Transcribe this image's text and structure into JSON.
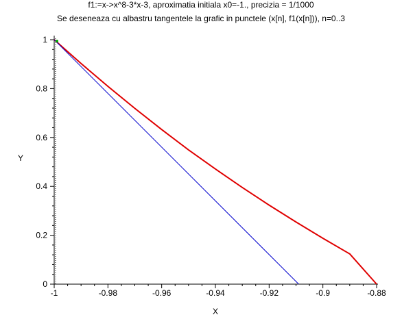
{
  "chart_data": {
    "type": "line",
    "title": "f1:=x->x^8-3*x-3, aproximatia initiala x0=-1.,  precizia = 1/1000",
    "subtitle": "Se deseneaza cu albastru tangentele la grafic in punctele (x[n], f1(x[n])), n=0..3",
    "xlabel": "X",
    "ylabel": "Y",
    "xlim": [
      -1.0,
      -0.88
    ],
    "ylim": [
      0,
      1.0
    ],
    "xticks": [
      -1,
      -0.98,
      -0.96,
      -0.94,
      -0.92,
      -0.9,
      -0.88
    ],
    "xtick_labels": [
      "-1",
      "-0.98",
      "-0.96",
      "-0.94",
      "-0.92",
      "-0.9",
      "-0.88"
    ],
    "yticks": [
      0,
      0.2,
      0.4,
      0.6,
      0.8,
      1
    ],
    "ytick_labels": [
      "0",
      "0.2",
      "0.4",
      "0.6",
      "0.8",
      "1"
    ],
    "grid": false,
    "series": [
      {
        "color": "#e00000",
        "x": [
          -1.0,
          -0.99,
          -0.98,
          -0.97,
          -0.96,
          -0.95,
          -0.94,
          -0.93,
          -0.92,
          -0.91,
          -0.9,
          -0.89,
          -0.88
        ],
        "y": [
          1.0,
          0.9027,
          0.8091,
          0.7192,
          0.6325,
          0.5493,
          0.471,
          0.3954,
          0.3232,
          0.2542,
          0.1876,
          0.1237,
          0.0
        ]
      },
      {
        "color": "#0000cc",
        "x": [
          -1.0,
          -0.909
        ],
        "y": [
          1.0,
          0.0
        ]
      }
    ],
    "vertical_marker": {
      "x": -0.9995,
      "color": "#000000",
      "style": "dotted"
    },
    "point_marker": {
      "x": -1.0,
      "y": 1.0,
      "color": "#00aa00"
    }
  }
}
